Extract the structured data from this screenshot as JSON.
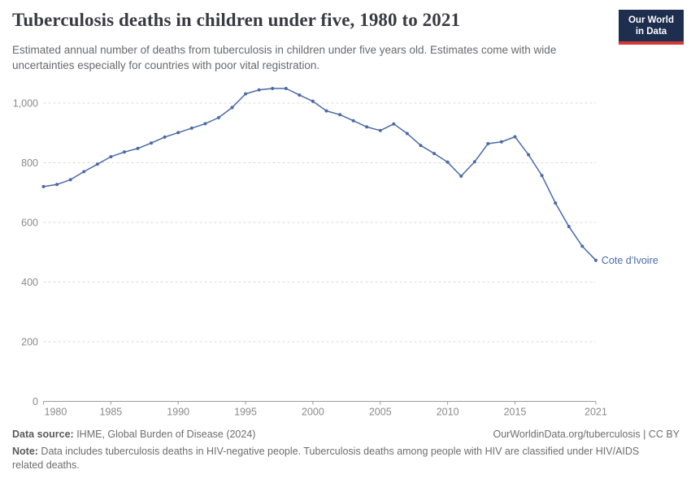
{
  "header": {
    "title": "Tuberculosis deaths in children under five, 1980 to 2021",
    "subtitle": "Estimated annual number of deaths from tuberculosis in children under five years old. Estimates come with wide uncertainties especially for countries with poor vital registration.",
    "logo": {
      "line1": "Our World",
      "line2": "in Data"
    }
  },
  "chart_data": {
    "type": "line",
    "title": "Tuberculosis deaths in children under five, 1980 to 2021",
    "xlabel": "",
    "ylabel": "",
    "xlim": [
      1980,
      2021
    ],
    "ylim": [
      0,
      1100
    ],
    "grid": "horizontal-dashed",
    "legend_position": "end-of-line-label",
    "x_ticks": [
      1980,
      1985,
      1990,
      1995,
      2000,
      2005,
      2010,
      2015,
      2021
    ],
    "y_ticks": [
      0,
      200,
      400,
      600,
      800,
      1000
    ],
    "y_tick_labels": [
      "0",
      "200",
      "400",
      "600",
      "800",
      "1,000"
    ],
    "x": [
      1980,
      1981,
      1982,
      1983,
      1984,
      1985,
      1986,
      1987,
      1988,
      1989,
      1990,
      1991,
      1992,
      1993,
      1994,
      1995,
      1996,
      1997,
      1998,
      1999,
      2000,
      2001,
      2002,
      2003,
      2004,
      2005,
      2006,
      2007,
      2008,
      2009,
      2010,
      2011,
      2012,
      2013,
      2014,
      2015,
      2016,
      2017,
      2018,
      2019,
      2020,
      2021
    ],
    "series": [
      {
        "name": "Cote d'Ivoire",
        "color": "#4a6aa6",
        "values": [
          720,
          727,
          743,
          770,
          795,
          820,
          836,
          848,
          866,
          886,
          901,
          916,
          931,
          951,
          985,
          1031,
          1044,
          1049,
          1049,
          1027,
          1006,
          974,
          961,
          941,
          920,
          908,
          930,
          898,
          858,
          831,
          802,
          755,
          803,
          864,
          870,
          887,
          827,
          757,
          665,
          586,
          520,
          473
        ]
      }
    ],
    "end_label": "Cote d'Ivoire"
  },
  "footer": {
    "datasource_label": "Data source:",
    "datasource_text": " IHME, Global Burden of Disease (2024)",
    "rights": "OurWorldinData.org/tuberculosis | CC BY",
    "note_label": "Note:",
    "note_text": " Data includes tuberculosis deaths in HIV-negative people. Tuberculosis deaths among people with HIV are classified under HIV/AIDS related deaths."
  },
  "colors": {
    "line": "#4a6aa6",
    "grid": "#dadada",
    "axis": "#9b9b9b",
    "tick_text": "#8a8a8a",
    "logo_bg": "#1d2e4e",
    "logo_stripe": "#d23a3a",
    "title_text": "#3a3a43",
    "subtitle_text": "#666a6d",
    "footer_text": "#6e6e6e"
  }
}
